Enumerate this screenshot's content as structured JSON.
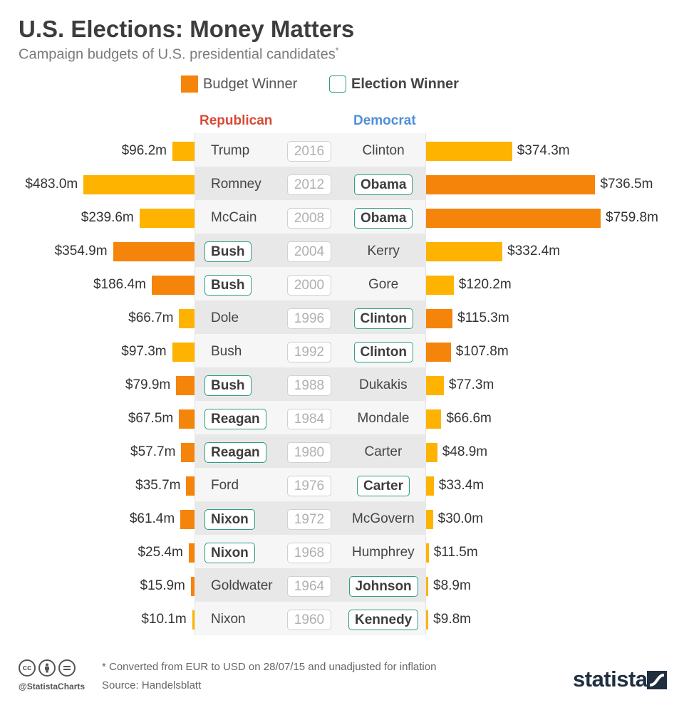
{
  "title": "U.S. Elections: Money Matters",
  "subtitle": "Campaign budgets of U.S. presidential candidates",
  "subtitle_mark": "*",
  "legend": {
    "budget_winner": "Budget Winner",
    "election_winner": "Election Winner"
  },
  "party_labels": {
    "republican": "Republican",
    "democrat": "Democrat"
  },
  "colors": {
    "budget_winner": "#f5840b",
    "budget_loser": "#fdb300",
    "election_winner_outline": "#2e9c86",
    "republican": "#d94a35",
    "democrat": "#4f8fd6"
  },
  "chart_data": {
    "type": "bar",
    "title": "U.S. Elections: Money Matters",
    "subtitle": "Campaign budgets of U.S. presidential candidates",
    "unit": "USD million",
    "rows": [
      {
        "year": "2016",
        "rep": {
          "name": "Trump",
          "value": 96.2,
          "label": "$96.2m",
          "budget_winner": false,
          "election_winner": false
        },
        "dem": {
          "name": "Clinton",
          "value": 374.3,
          "label": "$374.3m",
          "budget_winner": false,
          "election_winner": false
        }
      },
      {
        "year": "2012",
        "rep": {
          "name": "Romney",
          "value": 483.0,
          "label": "$483.0m",
          "budget_winner": false,
          "election_winner": false
        },
        "dem": {
          "name": "Obama",
          "value": 736.5,
          "label": "$736.5m",
          "budget_winner": true,
          "election_winner": true
        }
      },
      {
        "year": "2008",
        "rep": {
          "name": "McCain",
          "value": 239.6,
          "label": "$239.6m",
          "budget_winner": false,
          "election_winner": false
        },
        "dem": {
          "name": "Obama",
          "value": 759.8,
          "label": "$759.8m",
          "budget_winner": true,
          "election_winner": true
        }
      },
      {
        "year": "2004",
        "rep": {
          "name": "Bush",
          "value": 354.9,
          "label": "$354.9m",
          "budget_winner": true,
          "election_winner": true
        },
        "dem": {
          "name": "Kerry",
          "value": 332.4,
          "label": "$332.4m",
          "budget_winner": false,
          "election_winner": false
        }
      },
      {
        "year": "2000",
        "rep": {
          "name": "Bush",
          "value": 186.4,
          "label": "$186.4m",
          "budget_winner": true,
          "election_winner": true
        },
        "dem": {
          "name": "Gore",
          "value": 120.2,
          "label": "$120.2m",
          "budget_winner": false,
          "election_winner": false
        }
      },
      {
        "year": "1996",
        "rep": {
          "name": "Dole",
          "value": 66.7,
          "label": "$66.7m",
          "budget_winner": false,
          "election_winner": false
        },
        "dem": {
          "name": "Clinton",
          "value": 115.3,
          "label": "$115.3m",
          "budget_winner": true,
          "election_winner": true
        }
      },
      {
        "year": "1992",
        "rep": {
          "name": "Bush",
          "value": 97.3,
          "label": "$97.3m",
          "budget_winner": false,
          "election_winner": false
        },
        "dem": {
          "name": "Clinton",
          "value": 107.8,
          "label": "$107.8m",
          "budget_winner": true,
          "election_winner": true
        }
      },
      {
        "year": "1988",
        "rep": {
          "name": "Bush",
          "value": 79.9,
          "label": "$79.9m",
          "budget_winner": true,
          "election_winner": true
        },
        "dem": {
          "name": "Dukakis",
          "value": 77.3,
          "label": "$77.3m",
          "budget_winner": false,
          "election_winner": false
        }
      },
      {
        "year": "1984",
        "rep": {
          "name": "Reagan",
          "value": 67.5,
          "label": "$67.5m",
          "budget_winner": true,
          "election_winner": true
        },
        "dem": {
          "name": "Mondale",
          "value": 66.6,
          "label": "$66.6m",
          "budget_winner": false,
          "election_winner": false
        }
      },
      {
        "year": "1980",
        "rep": {
          "name": "Reagan",
          "value": 57.7,
          "label": "$57.7m",
          "budget_winner": true,
          "election_winner": true
        },
        "dem": {
          "name": "Carter",
          "value": 48.9,
          "label": "$48.9m",
          "budget_winner": false,
          "election_winner": false
        }
      },
      {
        "year": "1976",
        "rep": {
          "name": "Ford",
          "value": 35.7,
          "label": "$35.7m",
          "budget_winner": true,
          "election_winner": false
        },
        "dem": {
          "name": "Carter",
          "value": 33.4,
          "label": "$33.4m",
          "budget_winner": false,
          "election_winner": true
        }
      },
      {
        "year": "1972",
        "rep": {
          "name": "Nixon",
          "value": 61.4,
          "label": "$61.4m",
          "budget_winner": true,
          "election_winner": true
        },
        "dem": {
          "name": "McGovern",
          "value": 30.0,
          "label": "$30.0m",
          "budget_winner": false,
          "election_winner": false
        }
      },
      {
        "year": "1968",
        "rep": {
          "name": "Nixon",
          "value": 25.4,
          "label": "$25.4m",
          "budget_winner": true,
          "election_winner": true
        },
        "dem": {
          "name": "Humphrey",
          "value": 11.5,
          "label": "$11.5m",
          "budget_winner": false,
          "election_winner": false
        }
      },
      {
        "year": "1964",
        "rep": {
          "name": "Goldwater",
          "value": 15.9,
          "label": "$15.9m",
          "budget_winner": true,
          "election_winner": false
        },
        "dem": {
          "name": "Johnson",
          "value": 8.9,
          "label": "$8.9m",
          "budget_winner": false,
          "election_winner": true
        }
      },
      {
        "year": "1960",
        "rep": {
          "name": "Nixon",
          "value": 10.1,
          "label": "$10.1m",
          "budget_winner": false,
          "election_winner": false
        },
        "dem": {
          "name": "Kennedy",
          "value": 9.8,
          "label": "$9.8m",
          "budget_winner": false,
          "election_winner": true
        }
      }
    ]
  },
  "footer": {
    "note": "* Converted from EUR to USD on 28/07/15 and unadjusted for inflation",
    "source": "Source: Handelsblatt",
    "handle": "@StatistaCharts",
    "brand": "statista",
    "license_icons": [
      "cc-icon",
      "by-icon",
      "nd-icon"
    ]
  }
}
